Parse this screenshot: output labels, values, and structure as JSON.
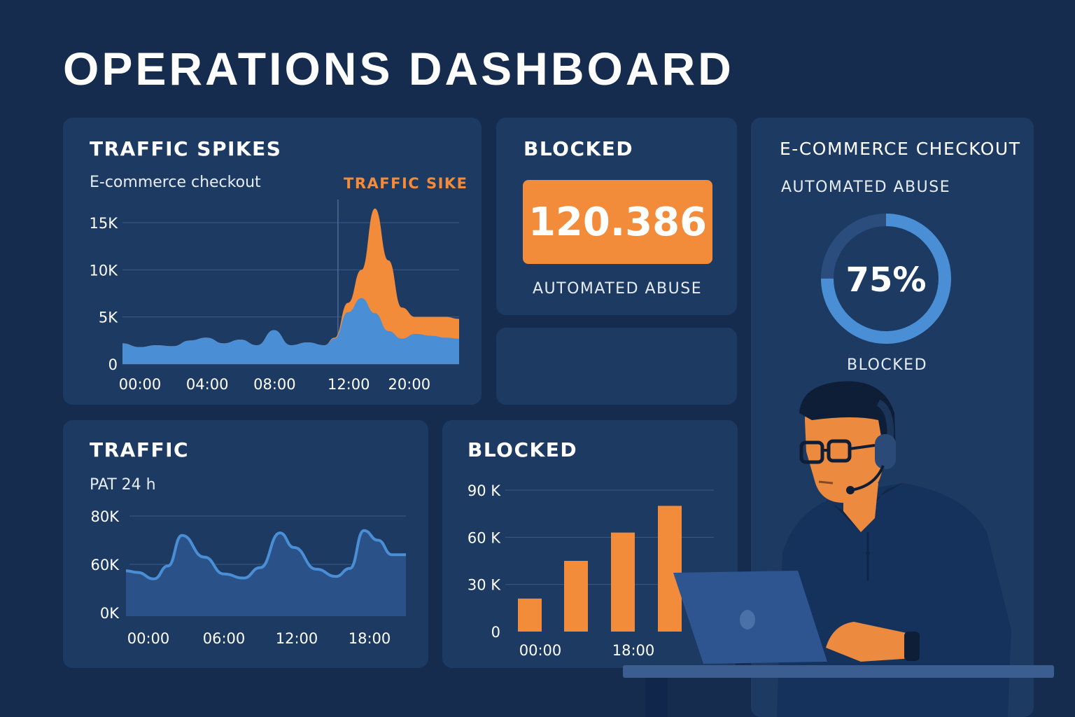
{
  "title": "OPERATIONS DASHBOARD",
  "colors": {
    "background": "#152c4f",
    "card": "#1d3a62",
    "accent_orange": "#f28b3a",
    "accent_blue": "#4a8fd6"
  },
  "traffic_spikes": {
    "heading": "TRAFFIC SPIKES",
    "subtitle": "E-commerce checkout",
    "annotation": "TRAFFIC SIKE"
  },
  "blocked_kpi": {
    "heading": "BLOCKED",
    "value": "120.386",
    "caption": "AUTOMATED ABUSE"
  },
  "donut_card": {
    "heading": "E-COMMERCE CHECKOUT",
    "subheading": "AUTOMATED ABUSE",
    "percent_label": "75%",
    "caption": "BLOCKED"
  },
  "traffic": {
    "heading": "TRAFFIC",
    "subtitle": "PAT 24 h"
  },
  "blocked_bars": {
    "heading": "BLOCKED"
  },
  "illustration": {
    "icon": "person-with-headset-at-laptop"
  },
  "chart_data": [
    {
      "type": "area",
      "ylim": [
        0,
        15000
      ],
      "y_ticks": [
        {
          "v": 0,
          "label": "0"
        },
        {
          "v": 5000,
          "label": "5K"
        },
        {
          "v": 10000,
          "label": "10K"
        },
        {
          "v": 15000,
          "label": "15K"
        }
      ],
      "x_ticks": [
        {
          "t": 0,
          "label": "00:00"
        },
        {
          "t": 0.2,
          "label": "04:00"
        },
        {
          "t": 0.4,
          "label": "08:00"
        },
        {
          "t": 0.62,
          "label": "12:00"
        },
        {
          "t": 0.8,
          "label": "20:00"
        }
      ],
      "xlim": [
        0,
        1
      ],
      "x": [
        0,
        0.05,
        0.1,
        0.15,
        0.2,
        0.25,
        0.3,
        0.35,
        0.4,
        0.45,
        0.5,
        0.55,
        0.6,
        0.63,
        0.67,
        0.71,
        0.75,
        0.79,
        0.83,
        0.87,
        0.92,
        0.96,
        1
      ],
      "series": [
        {
          "values": [
            2200,
            1800,
            2000,
            1900,
            2500,
            2800,
            2200,
            2600,
            2000,
            3600,
            2000,
            2300,
            2000,
            2700,
            5500,
            7000,
            5400,
            3500,
            2700,
            3200,
            3000,
            2800,
            2700
          ]
        },
        {
          "values": [
            2200,
            1800,
            2000,
            1900,
            2500,
            2800,
            2200,
            2600,
            2000,
            3600,
            2000,
            2300,
            2000,
            2800,
            6500,
            10000,
            16500,
            11000,
            6000,
            5000,
            5000,
            5000,
            4800
          ]
        }
      ],
      "marker_x": 0.64
    },
    {
      "type": "pie",
      "values": [
        75,
        25
      ]
    },
    {
      "type": "area",
      "ylim": [
        0,
        80000
      ],
      "y_ticks": [
        {
          "v": 0,
          "label": "0K"
        },
        {
          "v": 60000,
          "label": "60K"
        },
        {
          "v": 80000,
          "label": "80K"
        }
      ],
      "xlim": [
        0,
        1
      ],
      "x_ticks": [
        {
          "t": 0.08,
          "label": "00:00"
        },
        {
          "t": 0.35,
          "label": "06:00"
        },
        {
          "t": 0.61,
          "label": "12:00"
        },
        {
          "t": 0.87,
          "label": "18:00"
        }
      ],
      "x": [
        0,
        0.04,
        0.1,
        0.15,
        0.2,
        0.28,
        0.35,
        0.42,
        0.48,
        0.55,
        0.6,
        0.68,
        0.75,
        0.8,
        0.85,
        0.9,
        0.95,
        1
      ],
      "values": [
        52000,
        50000,
        42000,
        58000,
        72000,
        63000,
        48000,
        43000,
        56000,
        73000,
        67000,
        54000,
        45000,
        55000,
        74000,
        70000,
        64000,
        64000
      ]
    },
    {
      "type": "bar",
      "ylim": [
        0,
        90000
      ],
      "y_ticks": [
        {
          "v": 0,
          "label": "0"
        },
        {
          "v": 30000,
          "label": "30 K"
        },
        {
          "v": 60000,
          "label": "60 K"
        },
        {
          "v": 90000,
          "label": "90 K"
        }
      ],
      "categories": [
        "00:00",
        "",
        "18:00",
        ""
      ],
      "values": [
        21000,
        45000,
        63000,
        80000
      ]
    }
  ]
}
